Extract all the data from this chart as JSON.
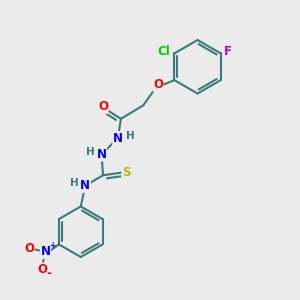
{
  "bg_color": "#ebebeb",
  "bond_color": "#3a7a7a",
  "bond_width": 1.5,
  "atom_colors": {
    "C": "#3a7a7a",
    "H": "#3a7a7a",
    "O": "#ff0000",
    "N": "#0000ee",
    "S": "#bbbb00",
    "Cl": "#00cc00",
    "F": "#cc00cc",
    "NO2_N": "#0000ee",
    "NO2_O": "#ff0000"
  },
  "font_size": 8.5,
  "fig_width": 3.0,
  "fig_height": 3.0,
  "dpi": 100
}
